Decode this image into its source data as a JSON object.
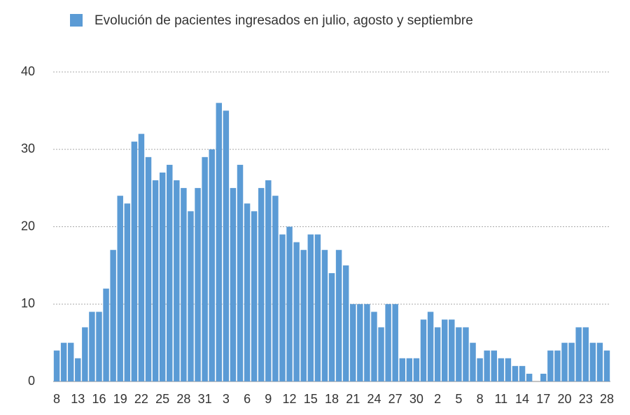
{
  "chart_data": {
    "type": "bar",
    "series": [
      {
        "name": "Evolución de pacientes ingresados en julio, agosto y septiembre",
        "color": "#5b9bd5",
        "values": [
          4,
          5,
          5,
          3,
          7,
          9,
          9,
          12,
          17,
          24,
          23,
          31,
          32,
          29,
          26,
          27,
          28,
          26,
          25,
          22,
          25,
          29,
          30,
          36,
          35,
          25,
          28,
          23,
          22,
          25,
          26,
          24,
          19,
          20,
          18,
          17,
          19,
          19,
          17,
          14,
          17,
          15,
          10,
          10,
          10,
          9,
          7,
          10,
          10,
          3,
          3,
          3,
          8,
          9,
          7,
          8,
          8,
          7,
          7,
          5,
          3,
          4,
          4,
          3,
          3,
          2,
          2,
          1,
          0,
          1,
          4,
          4,
          5,
          5,
          7,
          7,
          5,
          5,
          4
        ]
      }
    ],
    "categories": [
      "8",
      null,
      null,
      "13",
      null,
      null,
      "16",
      null,
      null,
      "19",
      null,
      null,
      "22",
      null,
      null,
      "25",
      null,
      null,
      "28",
      null,
      null,
      "31",
      null,
      null,
      "3",
      null,
      null,
      "6",
      null,
      null,
      "9",
      null,
      null,
      "12",
      null,
      null,
      "15",
      null,
      null,
      "18",
      null,
      null,
      "21",
      null,
      null,
      "24",
      null,
      null,
      "27",
      null,
      null,
      "30",
      null,
      null,
      "2",
      null,
      null,
      "5",
      null,
      null,
      "8",
      null,
      null,
      "11",
      null,
      null,
      "14",
      null,
      null,
      "17",
      null,
      null,
      "20",
      null,
      null,
      "23",
      null,
      null,
      "28"
    ],
    "ylim": [
      0,
      40
    ],
    "yticks": [
      0,
      10,
      20,
      30,
      40
    ],
    "grid": true,
    "legend": "top"
  }
}
